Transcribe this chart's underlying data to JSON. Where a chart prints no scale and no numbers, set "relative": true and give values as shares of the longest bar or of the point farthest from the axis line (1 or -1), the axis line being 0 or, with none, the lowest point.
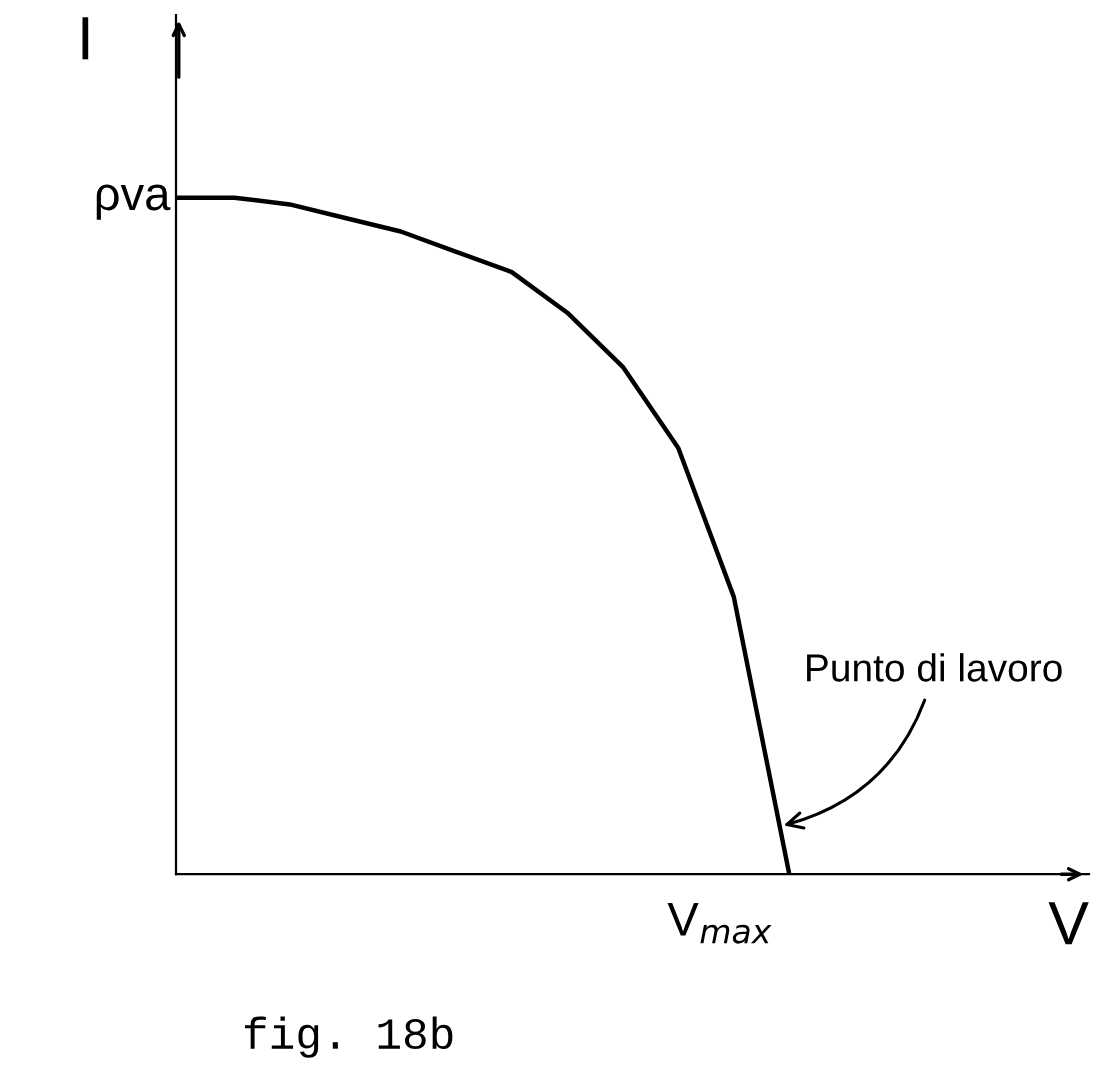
{
  "chart_data": {
    "type": "line",
    "relative": true,
    "xlabel": "V",
    "ylabel": "I",
    "categories": [
      null,
      null,
      null,
      null,
      null,
      null,
      null,
      null,
      null,
      null,
      null,
      null,
      null,
      null,
      null,
      null,
      null
    ],
    "series": [
      {
        "color": "#000000",
        "values": [
          1,
          1.0,
          0.99,
          0.97,
          0.95,
          0.92,
          0.89,
          0.83,
          0.75,
          0.63,
          0.41,
          0,
          null,
          null,
          null,
          null,
          null
        ]
      }
    ],
    "annotations": [
      "ρva",
      "V$_{max}$",
      "Punto di lavoro",
      "fig. 18b"
    ],
    "legend": false,
    "marker": "none",
    "line_style": "solid",
    "tick_labels": false
  }
}
